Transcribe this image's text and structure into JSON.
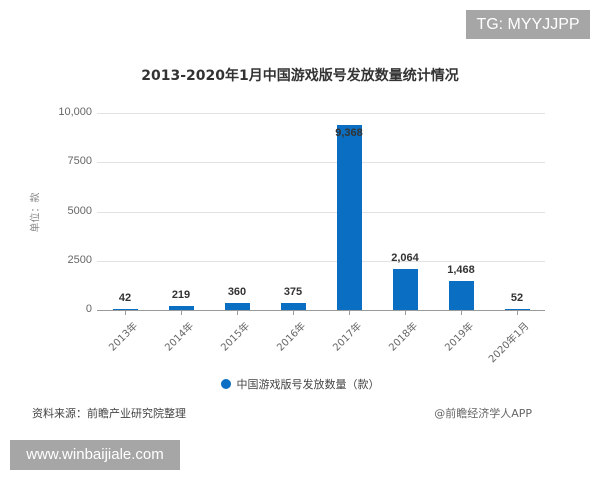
{
  "overlay": {
    "tg_badge": "TG: MYYJJPP",
    "url_badge": "www.winbaijiale.com"
  },
  "chart_data": {
    "type": "bar",
    "title": "2013-2020年1月中国游戏版号发放数量统计情况",
    "xlabel": "",
    "ylabel": "单位：款",
    "ylim": [
      0,
      10000
    ],
    "y_ticks": [
      "0",
      "2500",
      "5000",
      "7500",
      "10,000"
    ],
    "grid": true,
    "legend_position": "bottom",
    "categories": [
      "2013年",
      "2014年",
      "2015年",
      "2016年",
      "2017年",
      "2018年",
      "2019年",
      "2020年1月"
    ],
    "series": [
      {
        "name": "中国游戏版号发放数量（款）",
        "color": "#0a6fc2",
        "values": [
          42,
          219,
          360,
          375,
          9368,
          2064,
          1468,
          52
        ],
        "labels": [
          "42",
          "219",
          "360",
          "375",
          "9,368",
          "2,064",
          "1,468",
          "52"
        ]
      }
    ]
  },
  "legend": {
    "label": "中国游戏版号发放数量（款）"
  },
  "footer": {
    "source": "资料来源：前瞻产业研究院整理",
    "credit": "@前瞻经济学人APP"
  }
}
